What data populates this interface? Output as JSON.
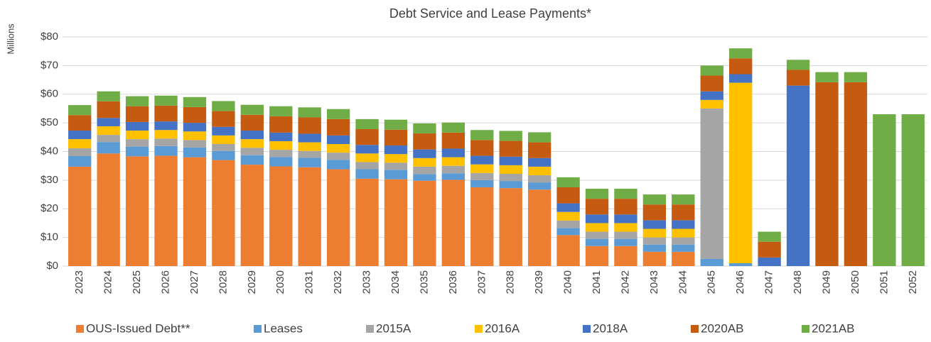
{
  "chart_data": {
    "type": "stacked_bar",
    "title": "Debt Service and Lease Payments*",
    "y_label": "Millions",
    "categories": [
      "2023",
      "2024",
      "2025",
      "2026",
      "2027",
      "2028",
      "2029",
      "2030",
      "2031",
      "2032",
      "2033",
      "2034",
      "2035",
      "2036",
      "2037",
      "2038",
      "2039",
      "2040",
      "2041",
      "2042",
      "2043",
      "2044",
      "2045",
      "2046",
      "2047",
      "2048",
      "2049",
      "2050",
      "2051",
      "2052"
    ],
    "series": [
      {
        "name": "OUS-Issued Debt**",
        "color": "#ed7d31",
        "values": [
          34.7,
          39.3,
          38.3,
          38.5,
          38.0,
          37.0,
          35.4,
          34.8,
          34.5,
          33.8,
          30.5,
          30.3,
          29.8,
          30.1,
          27.5,
          27.2,
          26.7,
          10.8,
          7.0,
          7.0,
          5.0,
          5.0,
          0,
          0,
          0,
          0,
          0,
          0,
          0,
          0
        ]
      },
      {
        "name": "Leases",
        "color": "#5b9bd5",
        "values": [
          3.7,
          4.0,
          3.4,
          3.4,
          3.4,
          3.2,
          3.3,
          3.3,
          3.3,
          3.3,
          3.3,
          3.3,
          2.3,
          2.3,
          2.5,
          2.5,
          2.5,
          2.5,
          2.5,
          2.5,
          2.5,
          2.5,
          2.5,
          1.0,
          0,
          0,
          0,
          0,
          0,
          0
        ]
      },
      {
        "name": "2015A",
        "color": "#a5a5a5",
        "values": [
          2.7,
          2.5,
          2.6,
          2.6,
          2.6,
          2.4,
          2.6,
          2.5,
          2.4,
          2.5,
          2.5,
          2.5,
          2.6,
          2.6,
          2.5,
          2.5,
          2.5,
          2.6,
          2.5,
          2.5,
          2.5,
          2.5,
          52.5,
          0,
          0,
          0,
          0,
          0,
          0,
          0
        ]
      },
      {
        "name": "2016A",
        "color": "#ffc000",
        "values": [
          3.2,
          3.0,
          3.0,
          3.0,
          3.0,
          3.0,
          3.0,
          3.0,
          3.0,
          3.0,
          3.0,
          3.0,
          3.0,
          3.0,
          3.0,
          3.0,
          3.0,
          3.0,
          3.0,
          3.0,
          3.0,
          3.0,
          3.0,
          63.0,
          0,
          0,
          0,
          0,
          0,
          0
        ]
      },
      {
        "name": "2018A",
        "color": "#4472c4",
        "values": [
          3.0,
          2.9,
          3.0,
          3.0,
          3.0,
          3.0,
          3.0,
          3.0,
          3.0,
          3.0,
          3.0,
          3.0,
          3.0,
          3.0,
          3.0,
          3.0,
          3.0,
          3.0,
          3.0,
          3.0,
          3.0,
          3.0,
          3.0,
          3.0,
          3.0,
          63.0,
          0,
          0,
          0,
          0
        ]
      },
      {
        "name": "2020AB",
        "color": "#c55a11",
        "values": [
          5.4,
          5.8,
          5.5,
          5.5,
          5.5,
          5.5,
          5.5,
          5.7,
          5.7,
          5.7,
          5.5,
          5.5,
          5.6,
          5.6,
          5.5,
          5.5,
          5.5,
          5.6,
          5.5,
          5.5,
          5.5,
          5.5,
          5.5,
          5.5,
          5.5,
          5.5,
          64.2,
          64.2,
          0,
          0
        ]
      },
      {
        "name": "2021AB",
        "color": "#70ad47",
        "values": [
          3.5,
          3.5,
          3.5,
          3.5,
          3.5,
          3.5,
          3.5,
          3.5,
          3.5,
          3.5,
          3.5,
          3.5,
          3.5,
          3.5,
          3.5,
          3.5,
          3.5,
          3.5,
          3.5,
          3.5,
          3.5,
          3.5,
          3.5,
          3.5,
          3.5,
          3.5,
          3.5,
          3.5,
          53.0,
          53.0
        ]
      }
    ],
    "ylim": [
      0,
      80
    ],
    "yticks": [
      {
        "value": 0,
        "label": "$0"
      },
      {
        "value": 10,
        "label": "$10"
      },
      {
        "value": 20,
        "label": "$20"
      },
      {
        "value": 30,
        "label": "$30"
      },
      {
        "value": 40,
        "label": "$40"
      },
      {
        "value": 50,
        "label": "$50"
      },
      {
        "value": 60,
        "label": "$60"
      },
      {
        "value": 70,
        "label": "$70"
      },
      {
        "value": 80,
        "label": "$80"
      }
    ],
    "grid": true,
    "legend": "bottom"
  }
}
